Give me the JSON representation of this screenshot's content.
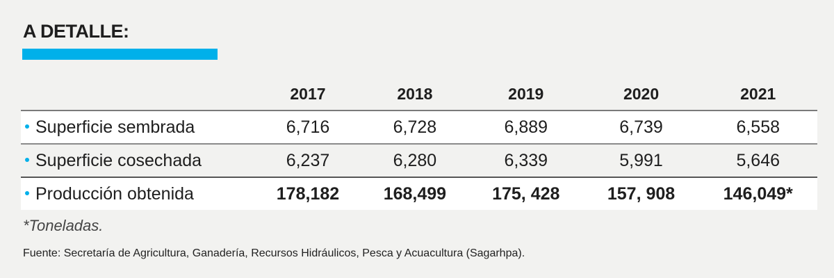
{
  "title": "A DETALLE:",
  "colors": {
    "accent": "#00b0ea"
  },
  "table": {
    "years": [
      "2017",
      "2018",
      "2019",
      "2020",
      "2021"
    ],
    "rows": [
      {
        "label": "Superficie sembrada",
        "values": [
          "6,716",
          "6,728",
          "6,889",
          "6,739",
          "6,558"
        ]
      },
      {
        "label": "Superficie cosechada",
        "values": [
          "6,237",
          "6,280",
          "6,339",
          "5,991",
          "5,646"
        ]
      },
      {
        "label": "Producción obtenida",
        "values": [
          "178,182",
          "168,499",
          "175, 428",
          "157, 908",
          "146,049*"
        ]
      }
    ]
  },
  "note": "*Toneladas.",
  "source": "Fuente: Secretaría de Agricultura, Ganadería, Recursos Hidráulicos, Pesca y Acuacultura (Sagarhpa)."
}
